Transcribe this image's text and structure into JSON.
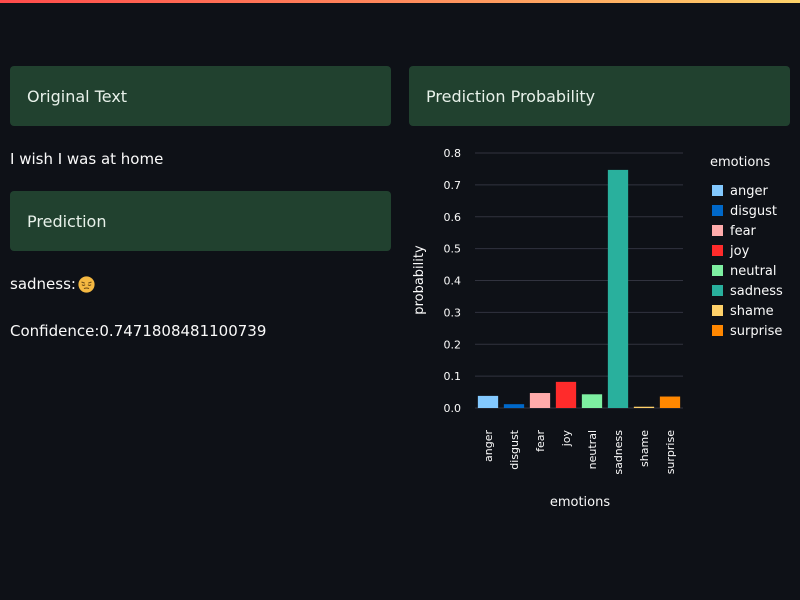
{
  "headers": {
    "original": "Original Text",
    "prediction": "Prediction",
    "probability": "Prediction Probability"
  },
  "original_text": "I wish I was at home",
  "prediction": {
    "label": "sadness:",
    "emoji_icon": "pensive-face-icon",
    "confidence": "Confidence:0.7471808481100739"
  },
  "colors": {
    "background": "#0e1117",
    "header_bg": "#21412f"
  },
  "chart_data": {
    "type": "bar",
    "xlabel": "emotions",
    "ylabel": "probability",
    "ylim": [
      0,
      0.8
    ],
    "y_ticks": [
      "0.0",
      "0.1",
      "0.2",
      "0.3",
      "0.4",
      "0.5",
      "0.6",
      "0.7",
      "0.8"
    ],
    "grid": true,
    "legend_title": "emotions",
    "legend_position": "right",
    "categories": [
      "anger",
      "disgust",
      "fear",
      "joy",
      "neutral",
      "sadness",
      "shame",
      "surprise"
    ],
    "values": [
      0.038,
      0.012,
      0.047,
      0.082,
      0.043,
      0.747,
      0.004,
      0.036
    ],
    "bar_colors": [
      "#83c9ff",
      "#0068c9",
      "#ffabab",
      "#ff2b2b",
      "#7defa1",
      "#29b09d",
      "#ffd16a",
      "#ff8700"
    ]
  }
}
